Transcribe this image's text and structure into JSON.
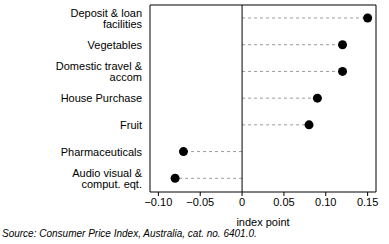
{
  "chart_data": {
    "type": "dot",
    "orientation": "horizontal",
    "categories": [
      "Deposit & loan facilities",
      "Vegetables",
      "Domestic travel & accom",
      "House Purchase",
      "Fruit",
      "Pharmaceuticals",
      "Audio visual & comput. eqt."
    ],
    "values": [
      0.15,
      0.12,
      0.12,
      0.09,
      0.08,
      -0.07,
      -0.08
    ],
    "color": "#000000",
    "xlim": [
      -0.11,
      0.16
    ],
    "xticks": [
      {
        "value": -0.1,
        "label": "−0.10"
      },
      {
        "value": -0.05,
        "label": "−0.05"
      },
      0,
      0.05,
      {
        "value": 0.1,
        "label": "0.10"
      },
      0.15
    ],
    "x_label": "index point",
    "grid": false,
    "source": "Source: Consumer Price Index, Australia, cat. no. 6401.0."
  }
}
